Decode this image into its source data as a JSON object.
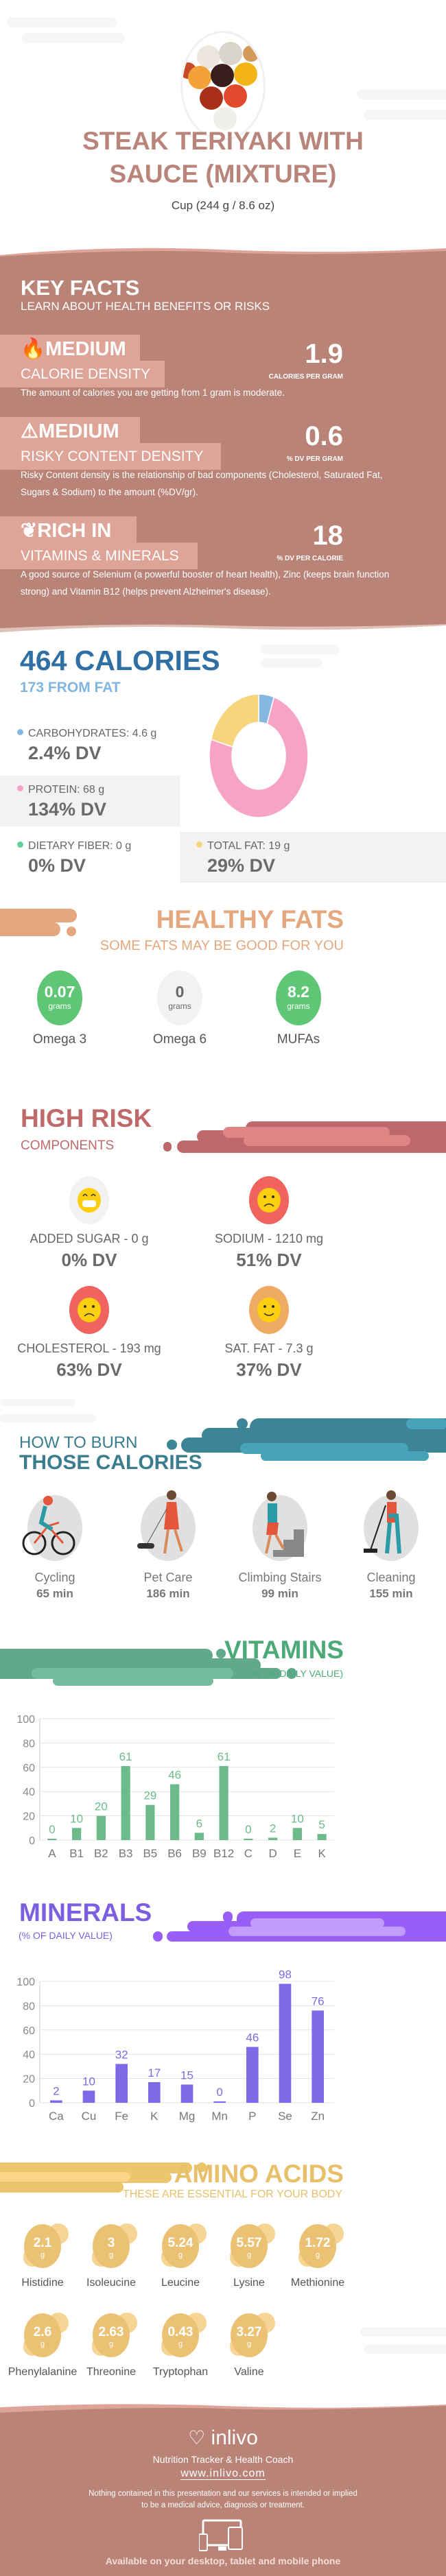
{
  "header": {
    "title_line1": "STEAK TERIYAKI WITH",
    "title_line2": "SAUCE (MIXTURE)",
    "serving": "Cup (244 g / 8.6 oz)",
    "image": "sauce-bowls-photo"
  },
  "key_facts": {
    "title": "KEY FACTS",
    "subtitle": "LEARN ABOUT HEALTH BENEFITS OR RISKS",
    "items": [
      {
        "icon": "flame-icon",
        "level": "MEDIUM",
        "label": "CALORIE DENSITY",
        "value": "1.9",
        "unit": "CALORIES PER GRAM",
        "description": "The amount of calories you are getting from 1 gram is moderate."
      },
      {
        "icon": "warning-icon",
        "level": "MEDIUM",
        "label": "RISKY CONTENT DENSITY",
        "value": "0.6",
        "unit": "% DV PER GRAM",
        "description": "Risky Content density is the relationship of bad components (Cholesterol, Saturated Fat, Sugars & Sodium) to the amount (%DV/gr)."
      },
      {
        "icon": "leaf-icon",
        "level": "RICH  IN",
        "label": "VITAMINS & MINERALS",
        "value": "18",
        "unit": "% DV PER CALORIE",
        "description": "A good source of Selenium (a powerful booster of heart health), Zinc (keeps brain function strong) and Vitamin B12 (helps prevent Alzheimer's disease)."
      }
    ]
  },
  "calories": {
    "title": "464 CALORIES",
    "from_fat": "173 FROM FAT",
    "nutrients": [
      {
        "label": "CARBOHYDRATES: 4.6 g",
        "dv": "2.4% DV",
        "color": "#86b9e2"
      },
      {
        "label": "PROTEIN: 68 g",
        "dv": "134% DV",
        "color": "#f7a3c6"
      },
      {
        "label": "DIETARY FIBER: 0 g",
        "dv": "0% DV",
        "color": "#5fcf96"
      },
      {
        "label": "TOTAL FAT: 19 g",
        "dv": "29% DV",
        "color": "#f7d47e"
      }
    ]
  },
  "chart_data": [
    {
      "type": "pie",
      "style": "donut",
      "categories": [
        "Carbohydrates",
        "Protein",
        "Total Fat"
      ],
      "values": [
        4.6,
        68,
        19
      ],
      "colors": [
        "#86b9e2",
        "#f7a3c6",
        "#f7d47e"
      ]
    },
    {
      "type": "bar",
      "title": "VITAMINS",
      "subtitle": "(% OF DAILY VALUE)",
      "categories": [
        "A",
        "B1",
        "B2",
        "B3",
        "B5",
        "B6",
        "B9",
        "B12",
        "C",
        "D",
        "E",
        "K"
      ],
      "values": [
        0,
        10,
        20,
        61,
        29,
        46,
        6,
        61,
        0,
        2,
        10,
        5
      ],
      "yticks": [
        0,
        20,
        40,
        60,
        80,
        100
      ],
      "ylim": [
        0,
        100
      ],
      "grid": true,
      "color": "#6dbb8b"
    },
    {
      "type": "bar",
      "title": "MINERALS",
      "subtitle": "(% OF DAILY VALUE)",
      "categories": [
        "Ca",
        "Cu",
        "Fe",
        "K",
        "Mg",
        "Mn",
        "P",
        "Se",
        "Zn"
      ],
      "values": [
        2,
        10,
        32,
        17,
        15,
        0,
        46,
        98,
        76
      ],
      "yticks": [
        0,
        20,
        40,
        60,
        80,
        100
      ],
      "ylim": [
        0,
        100
      ],
      "grid": true,
      "color": "#7f69e6"
    }
  ],
  "healthy_fats": {
    "title": "HEALTHY FATS",
    "subtitle": "SOME FATS MAY BE GOOD FOR YOU",
    "items": [
      {
        "value": "0.07",
        "unit": "grams",
        "label": "Omega 3",
        "color": "#5fc676"
      },
      {
        "value": "0",
        "unit": "grams",
        "label": "Omega 6",
        "color": "#f2f2f2"
      },
      {
        "value": "8.2",
        "unit": "grams",
        "label": "MUFAs",
        "color": "#5fc676"
      }
    ]
  },
  "high_risk": {
    "title": "HIGH RISK",
    "subtitle": "COMPONENTS",
    "items": [
      {
        "label": "ADDED SUGAR - 0 g",
        "dv": "0% DV",
        "face": "grin-face-icon",
        "ring": "#f2f2f2"
      },
      {
        "label": "SODIUM - 1210 mg",
        "dv": "51% DV",
        "face": "sad-face-icon",
        "ring": "#f0635f"
      },
      {
        "label": "CHOLESTEROL - 193 mg",
        "dv": "63% DV",
        "face": "sad-face-icon",
        "ring": "#f0635f"
      },
      {
        "label": "SAT. FAT - 7.3 g",
        "dv": "37% DV",
        "face": "smile-face-icon",
        "ring": "#f0ab63"
      }
    ]
  },
  "burn": {
    "title_line1": "HOW TO BURN",
    "title_line2": "THOSE CALORIES",
    "activities": [
      {
        "label": "Cycling",
        "time": "65 min",
        "icon": "cycling-icon"
      },
      {
        "label": "Pet Care",
        "time": "186 min",
        "icon": "dog-walking-icon"
      },
      {
        "label": "Climbing Stairs",
        "time": "99 min",
        "icon": "stairs-icon"
      },
      {
        "label": "Cleaning",
        "time": "155 min",
        "icon": "sweeping-icon"
      }
    ]
  },
  "amino": {
    "title": "AMINO ACIDS",
    "subtitle": "THESE ARE ESSENTIAL FOR YOUR BODY",
    "unit": "g",
    "items": [
      {
        "value": "2.1",
        "label": "Histidine"
      },
      {
        "value": "3",
        "label": "Isoleucine"
      },
      {
        "value": "5.24",
        "label": "Leucine"
      },
      {
        "value": "5.57",
        "label": "Lysine"
      },
      {
        "value": "1.72",
        "label": "Methionine"
      },
      {
        "value": "2.6",
        "label": "Phenylalanine"
      },
      {
        "value": "2.63",
        "label": "Threonine"
      },
      {
        "value": "0.43",
        "label": "Tryptophan"
      },
      {
        "value": "3.27",
        "label": "Valine"
      }
    ]
  },
  "footer": {
    "brand": "inlivo",
    "tagline": "Nutrition Tracker & Health Coach",
    "url": "www.inlivo.com",
    "disclaimer_line1": "Nothing contained in this presentation and our services is intended or implied",
    "disclaimer_line2": "to be a medical advice, diagnosis or treatment.",
    "available": "Available on your desktop, tablet and mobile phone"
  },
  "colors": {
    "brown": "#b98377",
    "brown_light": "#dea498",
    "blue": "#2f6fa3",
    "orange": "#e4a77e",
    "red": "#c0696b",
    "teal": "#3a7d8e",
    "green": "#4caa78",
    "purple": "#7b5fe0",
    "yellow": "#e8c06a"
  }
}
